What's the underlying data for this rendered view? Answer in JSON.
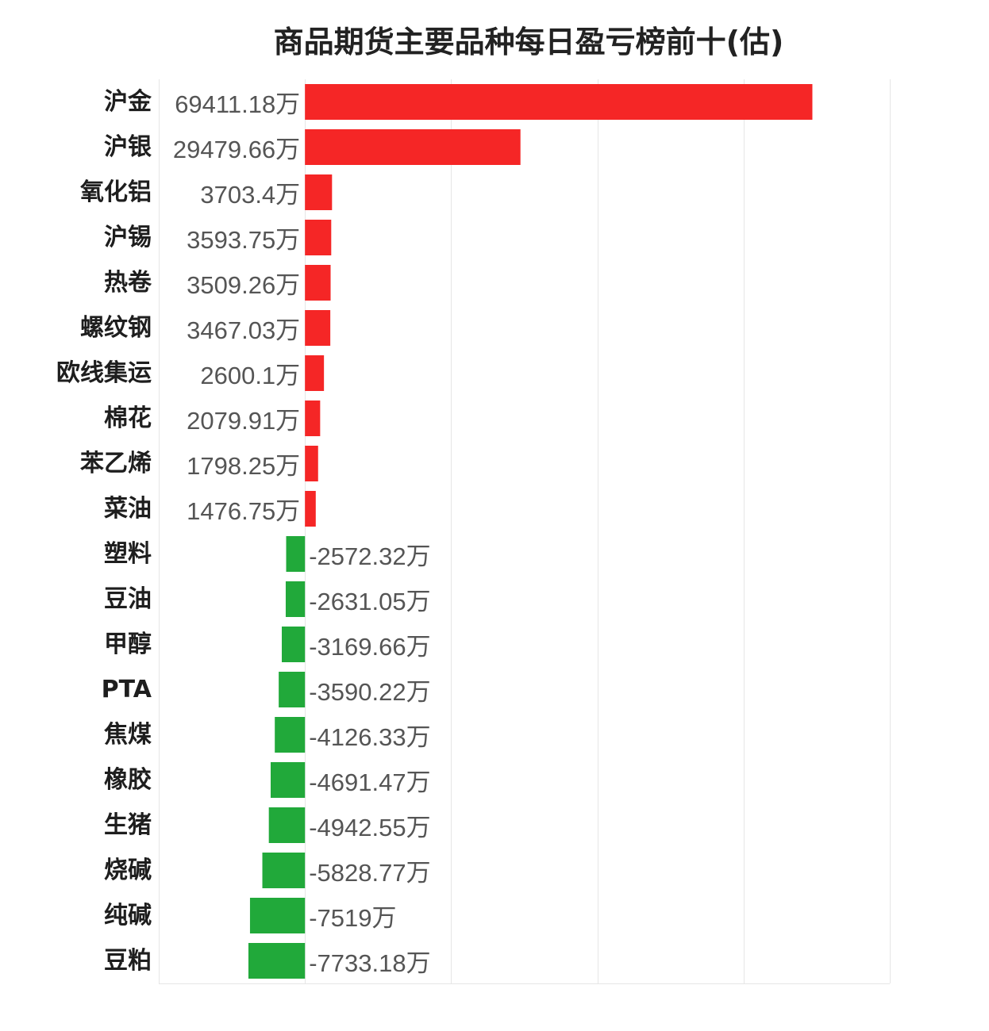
{
  "chart_data": {
    "type": "bar",
    "orientation": "horizontal",
    "title": "商品期货主要品种每日盈亏榜前十(估)",
    "unit": "万",
    "categories": [
      "沪金",
      "沪银",
      "氧化铝",
      "沪锡",
      "热卷",
      "螺纹钢",
      "欧线集运",
      "棉花",
      "苯乙烯",
      "菜油",
      "塑料",
      "豆油",
      "甲醇",
      "PTA",
      "焦煤",
      "橡胶",
      "生猪",
      "烧碱",
      "纯碱",
      "豆粕"
    ],
    "values": [
      69411.18,
      29479.66,
      3703.4,
      3593.75,
      3509.26,
      3467.03,
      2600.1,
      2079.91,
      1798.25,
      1476.75,
      -2572.32,
      -2631.05,
      -3169.66,
      -3590.22,
      -4126.33,
      -4691.47,
      -4942.55,
      -5828.77,
      -7519,
      -7733.18
    ],
    "value_labels": [
      "69411.18万",
      "29479.66万",
      "3703.4万",
      "3593.75万",
      "3509.26万",
      "3467.03万",
      "2600.1万",
      "2079.91万",
      "1798.25万",
      "1476.75万",
      "-2572.32万",
      "-2631.05万",
      "-3169.66万",
      "-3590.22万",
      "-4126.33万",
      "-4691.47万",
      "-4942.55万",
      "-5828.77万",
      "-7519万",
      "-7733.18万"
    ],
    "xlim": [
      -20000,
      80000
    ],
    "grid": true,
    "legend": "none",
    "colors": {
      "positive": "#f52626",
      "negative": "#21a93a",
      "grid": "#e6e6e6",
      "category_text": "#1e1e1e",
      "value_text": "#555555"
    }
  }
}
